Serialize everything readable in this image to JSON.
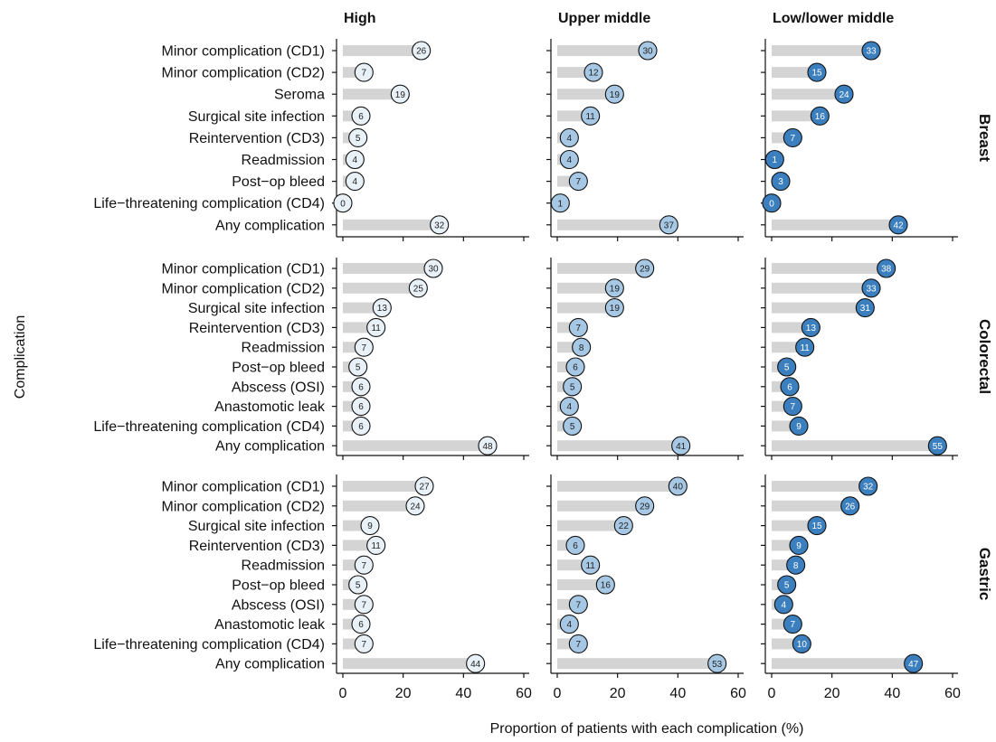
{
  "chart_data": {
    "type": "lollipop",
    "xlabel": "Proportion of patients with each complication (%)",
    "ylabel": "Complication",
    "xlim": [
      0,
      60
    ],
    "xticks": [
      0,
      20,
      40,
      60
    ],
    "columns": [
      {
        "name": "High",
        "color": "#e8f0f8",
        "text_color": "#222222"
      },
      {
        "name": "Upper middle",
        "color": "#a7c8e4",
        "text_color": "#222222"
      },
      {
        "name": "Low/lower middle",
        "color": "#3b7fbf",
        "text_color": "#ffffff"
      }
    ],
    "bar_color": "#d4d4d4",
    "panels": [
      {
        "name": "Breast",
        "categories": [
          "Minor complication (CD1)",
          "Minor complication (CD2)",
          "Seroma",
          "Surgical site infection",
          "Reintervention (CD3)",
          "Readmission",
          "Post−op bleed",
          "Life−threatening complication (CD4)",
          "Any complication"
        ],
        "values": {
          "High": [
            26,
            7,
            19,
            6,
            5,
            4,
            4,
            0,
            32
          ],
          "Upper middle": [
            30,
            12,
            19,
            11,
            4,
            4,
            7,
            1,
            37
          ],
          "Low/lower middle": [
            33,
            15,
            24,
            16,
            7,
            1,
            3,
            0,
            42
          ]
        }
      },
      {
        "name": "Colorectal",
        "categories": [
          "Minor complication (CD1)",
          "Minor complication (CD2)",
          "Surgical site infection",
          "Reintervention (CD3)",
          "Readmission",
          "Post−op bleed",
          "Abscess (OSI)",
          "Anastomotic leak",
          "Life−threatening complication (CD4)",
          "Any complication"
        ],
        "values": {
          "High": [
            30,
            25,
            13,
            11,
            7,
            5,
            6,
            6,
            6,
            48
          ],
          "Upper middle": [
            29,
            19,
            19,
            7,
            8,
            6,
            5,
            4,
            5,
            41
          ],
          "Low/lower middle": [
            38,
            33,
            31,
            13,
            11,
            5,
            6,
            7,
            9,
            55
          ]
        }
      },
      {
        "name": "Gastric",
        "categories": [
          "Minor complication (CD1)",
          "Minor complication (CD2)",
          "Surgical site infection",
          "Reintervention (CD3)",
          "Readmission",
          "Post−op bleed",
          "Abscess (OSI)",
          "Anastomotic leak",
          "Life−threatening complication (CD4)",
          "Any complication"
        ],
        "values": {
          "High": [
            27,
            24,
            9,
            11,
            7,
            5,
            7,
            6,
            7,
            44
          ],
          "Upper middle": [
            40,
            29,
            22,
            6,
            11,
            16,
            7,
            4,
            7,
            53
          ],
          "Low/lower middle": [
            32,
            26,
            15,
            9,
            8,
            5,
            4,
            7,
            10,
            47
          ]
        }
      }
    ]
  }
}
